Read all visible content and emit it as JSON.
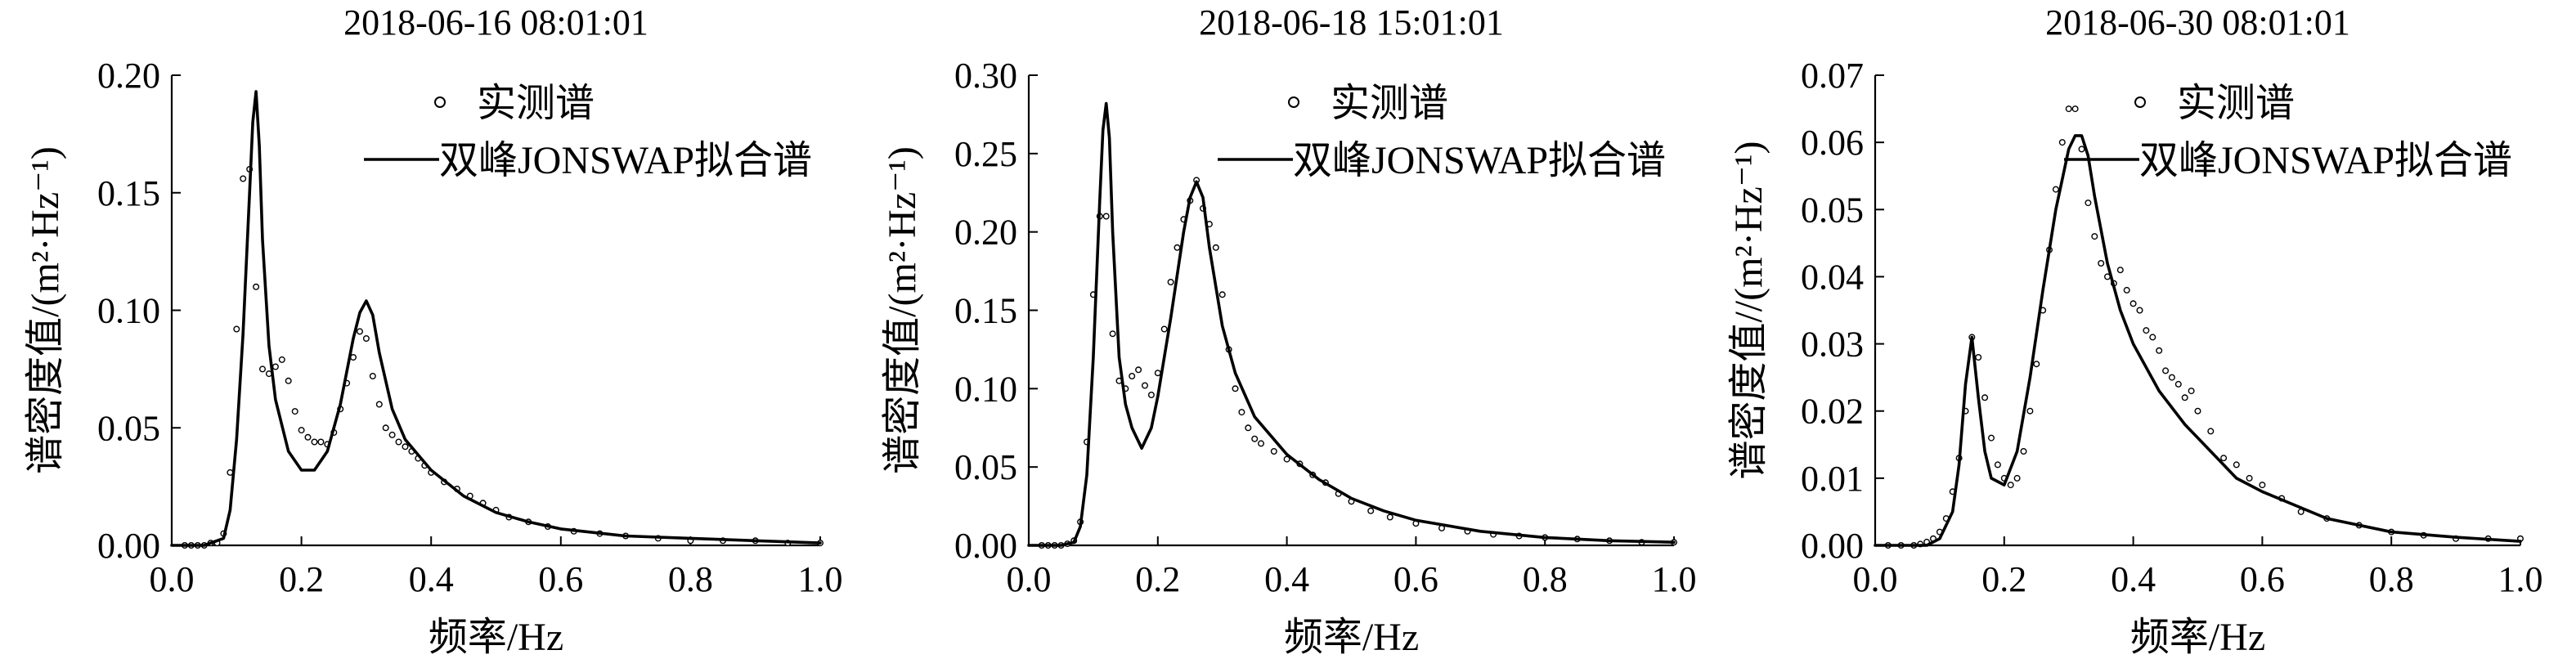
{
  "chart_data": [
    {
      "type": "line",
      "title": "2018-06-16 08:01:01",
      "xlabel": "频率/Hz",
      "ylabel": "谱密度值/(m²·Hz⁻¹)",
      "xlim": [
        0.0,
        1.0
      ],
      "ylim": [
        0.0,
        0.2
      ],
      "xticks": [
        "0.0",
        "0.2",
        "0.4",
        "0.6",
        "0.8",
        "1.0"
      ],
      "yticks": [
        "0.00",
        "0.05",
        "0.10",
        "0.15",
        "0.20"
      ],
      "legend": {
        "position": "top-right",
        "entries": [
          "实测谱",
          "双峰JONSWAP拟合谱"
        ]
      },
      "series": [
        {
          "name": "实测谱",
          "style": "hollow-circle",
          "x": [
            0.02,
            0.03,
            0.04,
            0.05,
            0.06,
            0.07,
            0.08,
            0.09,
            0.1,
            0.11,
            0.12,
            0.13,
            0.14,
            0.15,
            0.16,
            0.17,
            0.18,
            0.19,
            0.2,
            0.21,
            0.22,
            0.23,
            0.24,
            0.25,
            0.26,
            0.27,
            0.28,
            0.29,
            0.3,
            0.31,
            0.32,
            0.33,
            0.34,
            0.35,
            0.36,
            0.37,
            0.38,
            0.39,
            0.4,
            0.42,
            0.44,
            0.46,
            0.48,
            0.5,
            0.52,
            0.55,
            0.58,
            0.62,
            0.66,
            0.7,
            0.75,
            0.8,
            0.85,
            0.9,
            0.95,
            1.0
          ],
          "y": [
            0.0,
            0.0,
            0.0,
            0.0,
            0.001,
            0.001,
            0.005,
            0.031,
            0.092,
            0.156,
            0.16,
            0.11,
            0.075,
            0.073,
            0.076,
            0.079,
            0.07,
            0.057,
            0.049,
            0.046,
            0.044,
            0.044,
            0.043,
            0.048,
            0.058,
            0.069,
            0.08,
            0.091,
            0.088,
            0.072,
            0.06,
            0.05,
            0.047,
            0.044,
            0.042,
            0.04,
            0.037,
            0.034,
            0.031,
            0.027,
            0.024,
            0.021,
            0.018,
            0.015,
            0.012,
            0.01,
            0.008,
            0.006,
            0.005,
            0.004,
            0.003,
            0.002,
            0.002,
            0.002,
            0.001,
            0.001
          ]
        },
        {
          "name": "双峰JONSWAP拟合谱",
          "style": "solid-line",
          "x": [
            0.0,
            0.05,
            0.08,
            0.09,
            0.1,
            0.11,
            0.12,
            0.125,
            0.13,
            0.135,
            0.14,
            0.15,
            0.16,
            0.18,
            0.2,
            0.22,
            0.24,
            0.26,
            0.28,
            0.29,
            0.3,
            0.31,
            0.32,
            0.34,
            0.36,
            0.4,
            0.45,
            0.5,
            0.55,
            0.6,
            0.7,
            0.8,
            0.9,
            1.0
          ],
          "y": [
            0.0,
            0.0,
            0.003,
            0.015,
            0.045,
            0.09,
            0.15,
            0.18,
            0.193,
            0.17,
            0.13,
            0.085,
            0.062,
            0.04,
            0.032,
            0.032,
            0.04,
            0.06,
            0.088,
            0.099,
            0.104,
            0.098,
            0.082,
            0.058,
            0.045,
            0.032,
            0.021,
            0.014,
            0.01,
            0.007,
            0.004,
            0.003,
            0.002,
            0.001
          ]
        }
      ]
    },
    {
      "type": "line",
      "title": "2018-06-18 15:01:01",
      "xlabel": "频率/Hz",
      "ylabel": "谱密度值/(m²·Hz⁻¹)",
      "xlim": [
        0.0,
        1.0
      ],
      "ylim": [
        0.0,
        0.3
      ],
      "xticks": [
        "0.0",
        "0.2",
        "0.4",
        "0.6",
        "0.8",
        "1.0"
      ],
      "yticks": [
        "0.00",
        "0.05",
        "0.10",
        "0.15",
        "0.20",
        "0.25",
        "0.30"
      ],
      "legend": {
        "position": "top-right",
        "entries": [
          "实测谱",
          "双峰JONSWAP拟合谱"
        ]
      },
      "series": [
        {
          "name": "实测谱",
          "style": "hollow-circle",
          "x": [
            0.02,
            0.03,
            0.04,
            0.05,
            0.06,
            0.07,
            0.08,
            0.09,
            0.1,
            0.11,
            0.12,
            0.13,
            0.14,
            0.15,
            0.16,
            0.17,
            0.18,
            0.19,
            0.2,
            0.21,
            0.22,
            0.23,
            0.24,
            0.25,
            0.26,
            0.27,
            0.28,
            0.29,
            0.3,
            0.31,
            0.32,
            0.33,
            0.34,
            0.35,
            0.36,
            0.38,
            0.4,
            0.42,
            0.44,
            0.46,
            0.48,
            0.5,
            0.53,
            0.56,
            0.6,
            0.64,
            0.68,
            0.72,
            0.76,
            0.8,
            0.85,
            0.9,
            0.95,
            1.0
          ],
          "y": [
            0.0,
            0.0,
            0.0,
            0.0,
            0.001,
            0.003,
            0.015,
            0.066,
            0.16,
            0.21,
            0.21,
            0.135,
            0.105,
            0.1,
            0.108,
            0.112,
            0.102,
            0.096,
            0.11,
            0.138,
            0.168,
            0.19,
            0.208,
            0.22,
            0.233,
            0.215,
            0.205,
            0.19,
            0.16,
            0.125,
            0.1,
            0.085,
            0.075,
            0.068,
            0.065,
            0.06,
            0.055,
            0.052,
            0.045,
            0.04,
            0.033,
            0.028,
            0.022,
            0.018,
            0.014,
            0.011,
            0.009,
            0.007,
            0.006,
            0.005,
            0.004,
            0.003,
            0.002,
            0.002
          ]
        },
        {
          "name": "双峰JONSWAP拟合谱",
          "style": "solid-line",
          "x": [
            0.0,
            0.05,
            0.07,
            0.08,
            0.09,
            0.1,
            0.11,
            0.115,
            0.12,
            0.125,
            0.13,
            0.14,
            0.15,
            0.16,
            0.175,
            0.19,
            0.2,
            0.22,
            0.24,
            0.25,
            0.26,
            0.27,
            0.28,
            0.3,
            0.32,
            0.35,
            0.4,
            0.45,
            0.5,
            0.55,
            0.6,
            0.7,
            0.8,
            0.9,
            1.0
          ],
          "y": [
            0.0,
            0.0,
            0.002,
            0.012,
            0.045,
            0.12,
            0.22,
            0.265,
            0.282,
            0.26,
            0.2,
            0.12,
            0.09,
            0.075,
            0.062,
            0.075,
            0.095,
            0.145,
            0.2,
            0.222,
            0.232,
            0.222,
            0.19,
            0.14,
            0.11,
            0.082,
            0.058,
            0.042,
            0.03,
            0.022,
            0.016,
            0.009,
            0.005,
            0.003,
            0.002
          ]
        }
      ]
    },
    {
      "type": "line",
      "title": "2018-06-30 08:01:01",
      "xlabel": "频率/Hz",
      "ylabel": "谱密度值//(m²·Hz⁻¹)",
      "xlim": [
        0.0,
        1.0
      ],
      "ylim": [
        0.0,
        0.07
      ],
      "xticks": [
        "0.0",
        "0.2",
        "0.4",
        "0.6",
        "0.8",
        "1.0"
      ],
      "yticks": [
        "0.00",
        "0.01",
        "0.02",
        "0.03",
        "0.04",
        "0.05",
        "0.06",
        "0.07"
      ],
      "legend": {
        "position": "top-right",
        "entries": [
          "实测谱",
          "双峰JONSWAP拟合谱"
        ]
      },
      "series": [
        {
          "name": "实测谱",
          "style": "hollow-circle",
          "x": [
            0.02,
            0.04,
            0.06,
            0.07,
            0.08,
            0.09,
            0.1,
            0.11,
            0.12,
            0.13,
            0.14,
            0.15,
            0.16,
            0.17,
            0.18,
            0.19,
            0.2,
            0.21,
            0.22,
            0.23,
            0.24,
            0.25,
            0.26,
            0.27,
            0.28,
            0.29,
            0.3,
            0.31,
            0.32,
            0.33,
            0.34,
            0.35,
            0.36,
            0.37,
            0.38,
            0.39,
            0.4,
            0.41,
            0.42,
            0.43,
            0.44,
            0.45,
            0.46,
            0.47,
            0.48,
            0.49,
            0.5,
            0.52,
            0.54,
            0.56,
            0.58,
            0.6,
            0.63,
            0.66,
            0.7,
            0.75,
            0.8,
            0.85,
            0.9,
            0.95,
            1.0
          ],
          "y": [
            0.0,
            0.0,
            0.0,
            0.0002,
            0.0005,
            0.001,
            0.002,
            0.004,
            0.008,
            0.013,
            0.02,
            0.031,
            0.028,
            0.022,
            0.016,
            0.012,
            0.01,
            0.009,
            0.01,
            0.014,
            0.02,
            0.027,
            0.035,
            0.044,
            0.053,
            0.06,
            0.065,
            0.065,
            0.059,
            0.051,
            0.046,
            0.042,
            0.04,
            0.039,
            0.041,
            0.038,
            0.036,
            0.035,
            0.032,
            0.031,
            0.029,
            0.026,
            0.025,
            0.024,
            0.022,
            0.023,
            0.02,
            0.017,
            0.013,
            0.012,
            0.01,
            0.009,
            0.007,
            0.005,
            0.004,
            0.003,
            0.002,
            0.0015,
            0.001,
            0.001,
            0.001
          ]
        },
        {
          "name": "双峰JONSWAP拟合谱",
          "style": "solid-line",
          "x": [
            0.0,
            0.08,
            0.1,
            0.12,
            0.13,
            0.14,
            0.15,
            0.16,
            0.17,
            0.18,
            0.2,
            0.22,
            0.24,
            0.26,
            0.28,
            0.3,
            0.31,
            0.32,
            0.33,
            0.34,
            0.36,
            0.38,
            0.4,
            0.44,
            0.48,
            0.52,
            0.56,
            0.6,
            0.7,
            0.8,
            0.9,
            1.0
          ],
          "y": [
            0.0,
            0.0,
            0.001,
            0.005,
            0.012,
            0.024,
            0.031,
            0.022,
            0.014,
            0.01,
            0.009,
            0.014,
            0.025,
            0.038,
            0.05,
            0.059,
            0.061,
            0.061,
            0.058,
            0.052,
            0.042,
            0.035,
            0.03,
            0.023,
            0.018,
            0.014,
            0.01,
            0.008,
            0.004,
            0.002,
            0.0012,
            0.0006
          ]
        }
      ]
    }
  ]
}
